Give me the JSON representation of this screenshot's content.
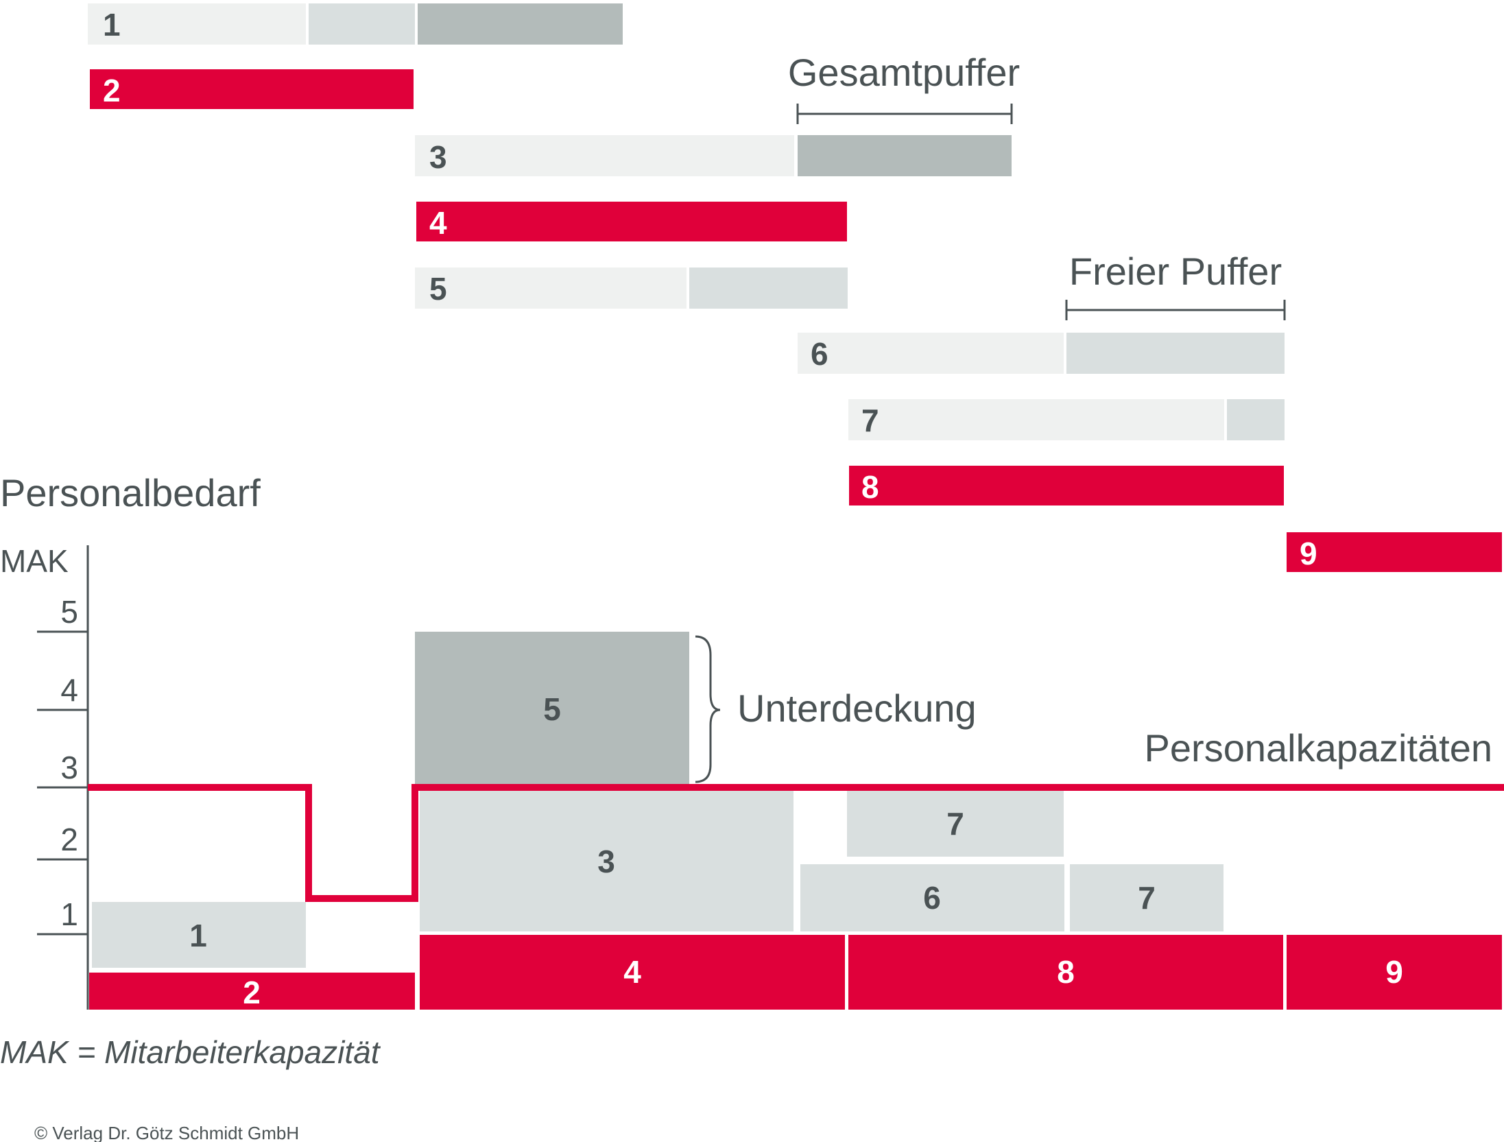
{
  "colors": {
    "red": "#e0003a",
    "light": "#eff1f0",
    "medium": "#d9dfdf",
    "dark": "#b3bbba",
    "text_dark": "#4a5254",
    "white": "#ffffff"
  },
  "gantt": {
    "rows": [
      {
        "label": "1",
        "critical": false
      },
      {
        "label": "2",
        "critical": true
      },
      {
        "label": "3",
        "critical": false
      },
      {
        "label": "4",
        "critical": true
      },
      {
        "label": "5",
        "critical": false
      },
      {
        "label": "6",
        "critical": false
      },
      {
        "label": "7",
        "critical": false
      },
      {
        "label": "8",
        "critical": true
      },
      {
        "label": "9",
        "critical": true
      }
    ],
    "gesamtpuffer_label": "Gesamtpuffer",
    "freier_puffer_label": "Freier Puffer"
  },
  "chart": {
    "title": "Personalbedarf",
    "unit_label": "MAK",
    "y_ticks": [
      "1",
      "2",
      "3",
      "4",
      "5"
    ],
    "capacity_label": "Personalkapazitäten",
    "shortfall_label": "Unterdeckung",
    "blocks": [
      {
        "label": "1",
        "critical": false
      },
      {
        "label": "2",
        "critical": true
      },
      {
        "label": "3",
        "critical": false
      },
      {
        "label": "4",
        "critical": true
      },
      {
        "label": "5",
        "critical": false
      },
      {
        "label": "6",
        "critical": false
      },
      {
        "label": "7",
        "critical": false
      },
      {
        "label": "7",
        "critical": false
      },
      {
        "label": "8",
        "critical": true
      },
      {
        "label": "9",
        "critical": true
      }
    ]
  },
  "footnote": "MAK = Mitarbeiterkapazität",
  "copyright": "© Verlag Dr. Götz Schmidt GmbH"
}
